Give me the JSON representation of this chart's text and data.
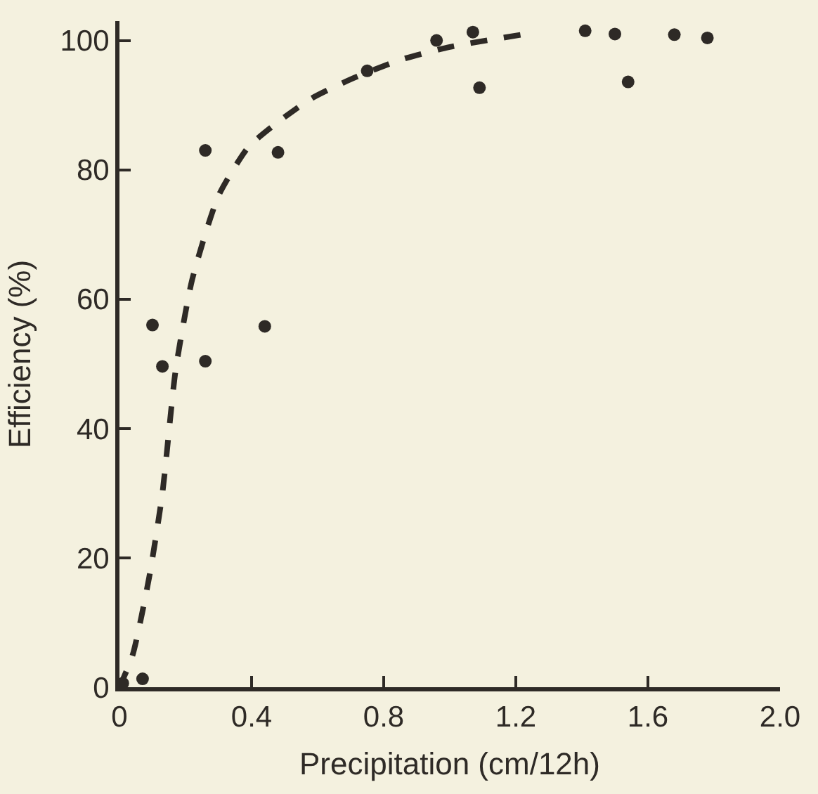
{
  "chart_data": {
    "type": "scatter",
    "xlabel": "Precipitation (cm/12h)",
    "ylabel": "Efficiency (%)",
    "xlim": [
      0,
      2.0
    ],
    "ylim": [
      0,
      103
    ],
    "xticks": [
      0,
      0.4,
      0.8,
      1.2,
      1.6,
      {
        "value": 2,
        "label": "2.0"
      }
    ],
    "yticks": [
      0,
      20,
      40,
      60,
      80,
      100
    ],
    "grid": false,
    "legend": false,
    "series": [
      {
        "color": "#2e2a26",
        "marker": "circle",
        "x": [
          0.01,
          0.07,
          0.1,
          0.13,
          0.26,
          0.26,
          0.44,
          0.48,
          0.75,
          0.96,
          1.07,
          1.09,
          1.41,
          1.5,
          1.54,
          1.68,
          1.78
        ],
        "values": [
          0.6,
          1.3,
          56,
          49.6,
          50.4,
          83,
          55.8,
          82.7,
          95.3,
          100,
          101.3,
          92.7,
          101.5,
          101,
          93.6,
          100.9,
          100.4
        ]
      },
      {
        "type": "line",
        "color": "#2e2a26",
        "line_style": "dashed",
        "x": [
          0,
          0.04,
          0.09,
          0.13,
          0.17,
          0.22,
          0.3,
          0.39,
          0.47,
          0.58,
          0.7,
          0.85,
          1.0,
          1.23
        ],
        "values": [
          0,
          5,
          17,
          30,
          49,
          63,
          76,
          83.5,
          87,
          91,
          94,
          97,
          99,
          101
        ]
      }
    ]
  }
}
